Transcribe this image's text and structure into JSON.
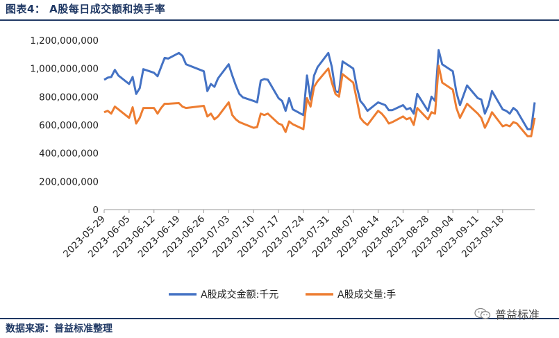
{
  "figure": {
    "title": "图表4： A股每日成交额和换手率",
    "source": "数据来源：普益标准整理",
    "watermark": "普益标准"
  },
  "chart_data": {
    "type": "line",
    "x_ticks": [
      "2023-05-29",
      "2023-06-05",
      "2023-06-12",
      "2023-06-19",
      "2023-06-26",
      "2023-07-03",
      "2023-07-10",
      "2023-07-17",
      "2023-07-24",
      "2023-07-31",
      "2023-08-07",
      "2023-08-14",
      "2023-08-21",
      "2023-08-28",
      "2023-09-04",
      "2023-09-11",
      "2023-09-18"
    ],
    "y_ticks": [
      "0",
      "200,000,000",
      "400,000,000",
      "600,000,000",
      "800,000,000",
      "1,000,000,000",
      "1,200,000,000"
    ],
    "ylim": [
      0,
      1200000000
    ],
    "legend_position": "bottom",
    "grid": false,
    "series": [
      {
        "name": "A股成交金额:千元",
        "color": "#4472c4",
        "points": [
          [
            "2023-05-29",
            920000000
          ],
          [
            "2023-05-30",
            935000000
          ],
          [
            "2023-05-31",
            940000000
          ],
          [
            "2023-06-01",
            990000000
          ],
          [
            "2023-06-02",
            950000000
          ],
          [
            "2023-06-05",
            890000000
          ],
          [
            "2023-06-06",
            940000000
          ],
          [
            "2023-06-07",
            820000000
          ],
          [
            "2023-06-08",
            860000000
          ],
          [
            "2023-06-09",
            995000000
          ],
          [
            "2023-06-12",
            970000000
          ],
          [
            "2023-06-13",
            945000000
          ],
          [
            "2023-06-14",
            1010000000
          ],
          [
            "2023-06-15",
            1075000000
          ],
          [
            "2023-06-16",
            1070000000
          ],
          [
            "2023-06-19",
            1110000000
          ],
          [
            "2023-06-20",
            1090000000
          ],
          [
            "2023-06-21",
            1030000000
          ],
          [
            "2023-06-26",
            980000000
          ],
          [
            "2023-06-27",
            840000000
          ],
          [
            "2023-06-28",
            890000000
          ],
          [
            "2023-06-29",
            870000000
          ],
          [
            "2023-06-30",
            930000000
          ],
          [
            "2023-07-03",
            1030000000
          ],
          [
            "2023-07-04",
            950000000
          ],
          [
            "2023-07-05",
            880000000
          ],
          [
            "2023-07-06",
            820000000
          ],
          [
            "2023-07-07",
            795000000
          ],
          [
            "2023-07-10",
            770000000
          ],
          [
            "2023-07-11",
            760000000
          ],
          [
            "2023-07-12",
            915000000
          ],
          [
            "2023-07-13",
            925000000
          ],
          [
            "2023-07-14",
            920000000
          ],
          [
            "2023-07-17",
            790000000
          ],
          [
            "2023-07-18",
            770000000
          ],
          [
            "2023-07-19",
            700000000
          ],
          [
            "2023-07-20",
            790000000
          ],
          [
            "2023-07-21",
            710000000
          ],
          [
            "2023-07-24",
            670000000
          ],
          [
            "2023-07-25",
            950000000
          ],
          [
            "2023-07-26",
            780000000
          ],
          [
            "2023-07-27",
            950000000
          ],
          [
            "2023-07-28",
            1010000000
          ],
          [
            "2023-07-31",
            1110000000
          ],
          [
            "2023-08-01",
            1010000000
          ],
          [
            "2023-08-02",
            840000000
          ],
          [
            "2023-08-03",
            830000000
          ],
          [
            "2023-08-04",
            1050000000
          ],
          [
            "2023-08-07",
            1000000000
          ],
          [
            "2023-08-08",
            870000000
          ],
          [
            "2023-08-09",
            770000000
          ],
          [
            "2023-08-10",
            740000000
          ],
          [
            "2023-08-11",
            700000000
          ],
          [
            "2023-08-14",
            760000000
          ],
          [
            "2023-08-15",
            750000000
          ],
          [
            "2023-08-16",
            740000000
          ],
          [
            "2023-08-17",
            705000000
          ],
          [
            "2023-08-18",
            705000000
          ],
          [
            "2023-08-21",
            740000000
          ],
          [
            "2023-08-22",
            710000000
          ],
          [
            "2023-08-23",
            720000000
          ],
          [
            "2023-08-24",
            680000000
          ],
          [
            "2023-08-25",
            820000000
          ],
          [
            "2023-08-28",
            700000000
          ],
          [
            "2023-08-29",
            800000000
          ],
          [
            "2023-08-30",
            770000000
          ],
          [
            "2023-08-31",
            1130000000
          ],
          [
            "2023-09-01",
            1030000000
          ],
          [
            "2023-09-04",
            980000000
          ],
          [
            "2023-09-05",
            830000000
          ],
          [
            "2023-09-06",
            740000000
          ],
          [
            "2023-09-07",
            810000000
          ],
          [
            "2023-09-08",
            880000000
          ],
          [
            "2023-09-11",
            790000000
          ],
          [
            "2023-09-12",
            780000000
          ],
          [
            "2023-09-13",
            680000000
          ],
          [
            "2023-09-14",
            740000000
          ],
          [
            "2023-09-15",
            840000000
          ],
          [
            "2023-09-18",
            710000000
          ],
          [
            "2023-09-19",
            700000000
          ],
          [
            "2023-09-20",
            680000000
          ],
          [
            "2023-09-21",
            720000000
          ],
          [
            "2023-09-22",
            700000000
          ],
          [
            "2023-09-25",
            570000000
          ],
          [
            "2023-09-26",
            570000000
          ],
          [
            "2023-09-27",
            760000000
          ]
        ]
      },
      {
        "name": "A股成交量:手",
        "color": "#ed7d31",
        "points": [
          [
            "2023-05-29",
            690000000
          ],
          [
            "2023-05-30",
            700000000
          ],
          [
            "2023-05-31",
            680000000
          ],
          [
            "2023-06-01",
            730000000
          ],
          [
            "2023-06-02",
            710000000
          ],
          [
            "2023-06-05",
            650000000
          ],
          [
            "2023-06-06",
            725000000
          ],
          [
            "2023-06-07",
            610000000
          ],
          [
            "2023-06-08",
            650000000
          ],
          [
            "2023-06-09",
            720000000
          ],
          [
            "2023-06-12",
            720000000
          ],
          [
            "2023-06-13",
            680000000
          ],
          [
            "2023-06-14",
            720000000
          ],
          [
            "2023-06-15",
            750000000
          ],
          [
            "2023-06-16",
            750000000
          ],
          [
            "2023-06-19",
            755000000
          ],
          [
            "2023-06-20",
            730000000
          ],
          [
            "2023-06-21",
            720000000
          ],
          [
            "2023-06-26",
            735000000
          ],
          [
            "2023-06-27",
            660000000
          ],
          [
            "2023-06-28",
            680000000
          ],
          [
            "2023-06-29",
            640000000
          ],
          [
            "2023-06-30",
            660000000
          ],
          [
            "2023-07-03",
            760000000
          ],
          [
            "2023-07-04",
            670000000
          ],
          [
            "2023-07-05",
            640000000
          ],
          [
            "2023-07-06",
            620000000
          ],
          [
            "2023-07-07",
            610000000
          ],
          [
            "2023-07-10",
            580000000
          ],
          [
            "2023-07-11",
            585000000
          ],
          [
            "2023-07-12",
            680000000
          ],
          [
            "2023-07-13",
            670000000
          ],
          [
            "2023-07-14",
            680000000
          ],
          [
            "2023-07-17",
            610000000
          ],
          [
            "2023-07-18",
            600000000
          ],
          [
            "2023-07-19",
            550000000
          ],
          [
            "2023-07-20",
            625000000
          ],
          [
            "2023-07-21",
            605000000
          ],
          [
            "2023-07-24",
            570000000
          ],
          [
            "2023-07-25",
            790000000
          ],
          [
            "2023-07-26",
            730000000
          ],
          [
            "2023-07-27",
            870000000
          ],
          [
            "2023-07-28",
            910000000
          ],
          [
            "2023-07-31",
            1000000000
          ],
          [
            "2023-08-01",
            900000000
          ],
          [
            "2023-08-02",
            820000000
          ],
          [
            "2023-08-03",
            800000000
          ],
          [
            "2023-08-04",
            960000000
          ],
          [
            "2023-08-07",
            900000000
          ],
          [
            "2023-08-08",
            780000000
          ],
          [
            "2023-08-09",
            650000000
          ],
          [
            "2023-08-10",
            620000000
          ],
          [
            "2023-08-11",
            600000000
          ],
          [
            "2023-08-14",
            700000000
          ],
          [
            "2023-08-15",
            680000000
          ],
          [
            "2023-08-16",
            650000000
          ],
          [
            "2023-08-17",
            610000000
          ],
          [
            "2023-08-18",
            620000000
          ],
          [
            "2023-08-21",
            660000000
          ],
          [
            "2023-08-22",
            640000000
          ],
          [
            "2023-08-23",
            650000000
          ],
          [
            "2023-08-24",
            600000000
          ],
          [
            "2023-08-25",
            720000000
          ],
          [
            "2023-08-28",
            640000000
          ],
          [
            "2023-08-29",
            690000000
          ],
          [
            "2023-08-30",
            680000000
          ],
          [
            "2023-08-31",
            1020000000
          ],
          [
            "2023-09-01",
            900000000
          ],
          [
            "2023-09-04",
            850000000
          ],
          [
            "2023-09-05",
            720000000
          ],
          [
            "2023-09-06",
            650000000
          ],
          [
            "2023-09-07",
            700000000
          ],
          [
            "2023-09-08",
            750000000
          ],
          [
            "2023-09-11",
            680000000
          ],
          [
            "2023-09-12",
            650000000
          ],
          [
            "2023-09-13",
            580000000
          ],
          [
            "2023-09-14",
            630000000
          ],
          [
            "2023-09-15",
            690000000
          ],
          [
            "2023-09-18",
            590000000
          ],
          [
            "2023-09-19",
            600000000
          ],
          [
            "2023-09-20",
            590000000
          ],
          [
            "2023-09-21",
            620000000
          ],
          [
            "2023-09-22",
            610000000
          ],
          [
            "2023-09-25",
            520000000
          ],
          [
            "2023-09-26",
            520000000
          ],
          [
            "2023-09-27",
            650000000
          ]
        ]
      }
    ]
  }
}
